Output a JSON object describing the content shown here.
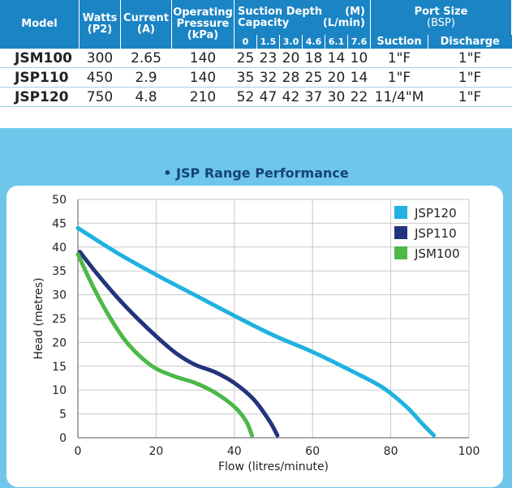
{
  "table": {
    "headers": {
      "model": "Model",
      "watts": [
        "Watts",
        "(P2)"
      ],
      "current": [
        "Current",
        "(A)"
      ],
      "pressure": [
        "Operating",
        "Pressure",
        "(kPa)"
      ],
      "suction_depth": "Suction Depth",
      "suction_depth_unit": "(M)",
      "capacity": "Capacity",
      "capacity_unit": "(L/min)",
      "port_size": "Port Size",
      "port_size_unit": "(BSP)",
      "depths": [
        "0",
        "1.5",
        "3.0",
        "4.6",
        "6.1",
        "7.6"
      ],
      "suction": "Suction",
      "discharge": "Discharge"
    },
    "rows": [
      {
        "model": "JSM100",
        "watts": "300",
        "current": "2.65",
        "pressure": "140",
        "capacity": [
          "25",
          "23",
          "20",
          "18",
          "14",
          "10"
        ],
        "suction": "1\"F",
        "discharge": "1\"F"
      },
      {
        "model": "JSP110",
        "watts": "450",
        "current": "2.9",
        "pressure": "140",
        "capacity": [
          "35",
          "32",
          "28",
          "25",
          "20",
          "14"
        ],
        "suction": "1\"F",
        "discharge": "1\"F"
      },
      {
        "model": "JSP120",
        "watts": "750",
        "current": "4.8",
        "pressure": "210",
        "capacity": [
          "52",
          "47",
          "42",
          "37",
          "30",
          "22"
        ],
        "suction": "11/4\"M",
        "discharge": "1\"F"
      }
    ]
  },
  "chart_data": {
    "type": "line",
    "title": "• JSP Range Performance",
    "xlabel": "Flow (litres/minute)",
    "ylabel": "Head (metres)",
    "xlim": [
      0,
      100
    ],
    "ylim": [
      0,
      50
    ],
    "xticks": [
      "0",
      "20",
      "40",
      "60",
      "80",
      "100"
    ],
    "yticks": [
      "0",
      "5",
      "10",
      "15",
      "20",
      "25",
      "30",
      "35",
      "40",
      "45",
      "50"
    ],
    "grid": true,
    "legend_position": "top-right",
    "series": [
      {
        "name": "JSP120",
        "color": "#1fb2e0",
        "x": [
          0,
          10,
          20,
          30,
          40,
          50,
          60,
          70,
          78,
          84,
          88,
          91
        ],
        "y": [
          44,
          38.8,
          34.2,
          29.9,
          25.6,
          21.5,
          18,
          14,
          10.5,
          6.5,
          3,
          0.5
        ]
      },
      {
        "name": "JSP110",
        "color": "#23347d",
        "x": [
          0.5,
          5,
          10,
          15,
          20,
          25,
          30,
          35,
          40,
          45,
          49,
          51
        ],
        "y": [
          39,
          34.3,
          29.5,
          25.2,
          21.3,
          17.8,
          15.3,
          13.8,
          11.5,
          8,
          3.5,
          0.5
        ]
      },
      {
        "name": "JSM100",
        "color": "#4db848",
        "x": [
          0,
          4,
          8,
          12,
          16,
          20,
          25,
          30,
          35,
          40,
          43,
          44.5
        ],
        "y": [
          38.5,
          31.5,
          25.5,
          20.5,
          17,
          14.5,
          12.8,
          11.5,
          9.5,
          6.5,
          3.5,
          0.5
        ]
      }
    ]
  }
}
